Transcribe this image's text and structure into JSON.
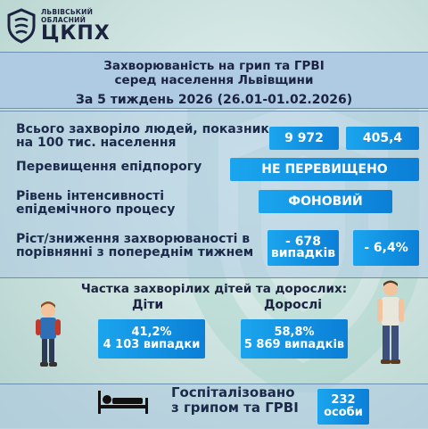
{
  "header": {
    "org_line1": "ЛЬВІВСЬКИЙ",
    "org_line2": "ОБЛАСНИЙ",
    "org_abbr": "ЦКПХ"
  },
  "title": {
    "line1": "Захворюваність на грип та ГРВІ",
    "line2": "серед населення Львівщини",
    "period": "За 5 тиждень 2026 (26.01-01.02.2026)"
  },
  "stats": {
    "total_label_1": "Всього захворіло людей, показник",
    "total_label_2": "на 100 тис. населення",
    "total_value": "9 972",
    "rate_value": "405,4",
    "threshold_label": "Перевищення епідпорогу",
    "threshold_value": "НЕ ПЕРЕВИЩЕНО",
    "intensity_label_1": "Рівень інтенсивності",
    "intensity_label_2": "епідемічного процесу",
    "intensity_value": "ФОНОВИЙ",
    "change_label_1": "Ріст/зниження захворюваності   в",
    "change_label_2": "порівнянні з попереднім тижнем",
    "change_cases_1": "- 678",
    "change_cases_2": "випадків",
    "change_pct": "- 6,4%"
  },
  "share": {
    "title": "Частка захворілих дітей та дорослих:",
    "children_label": "Діти",
    "children_pct": "41,2%",
    "children_cases": "4 103 випадки",
    "adults_label": "Дорослі",
    "adults_pct": "58,8%",
    "adults_cases": "5 869 випадків"
  },
  "hospital": {
    "label_1": "Госпіталізовано",
    "label_2": "з грипом та ГРВІ",
    "count": "232",
    "unit": "особи"
  },
  "colors": {
    "accent": "#0b7fd6",
    "accent_light": "#1ba5ee",
    "band": "#aecbe3",
    "text": "#1b2340"
  }
}
